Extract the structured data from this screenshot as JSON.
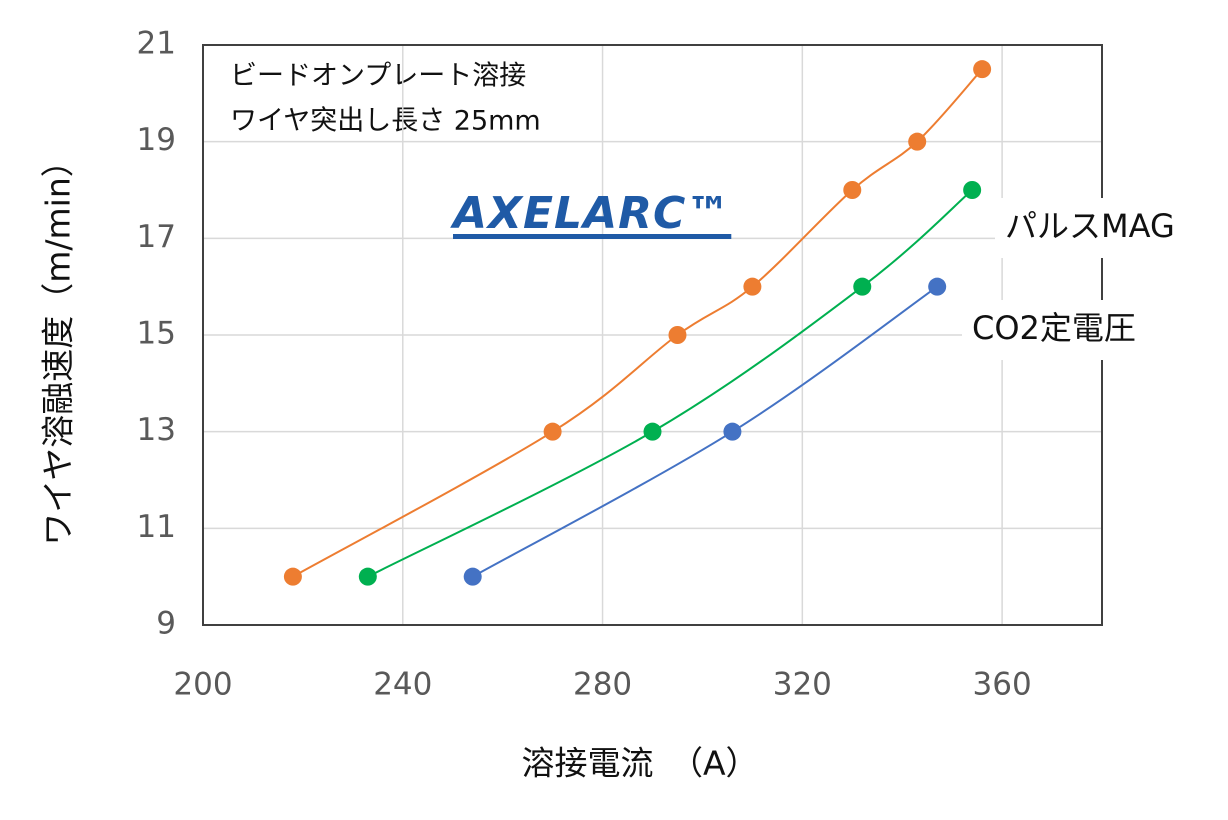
{
  "chart_data": {
    "type": "scatter_smooth",
    "annotations": [
      "ビードオンプレート溶接",
      "ワイヤ突出し長さ 25mm"
    ],
    "x_label": "溶接電流　（A）",
    "y_label": "ワイヤ溶融速度（m/min）",
    "xlim": [
      200,
      380
    ],
    "xticks": [
      200,
      240,
      280,
      320,
      360
    ],
    "ylim": [
      9,
      21
    ],
    "yticks": [
      9,
      11,
      13,
      15,
      17,
      19,
      21
    ],
    "grid": true,
    "series": [
      {
        "name": "AXELARC™",
        "color": "#ed7d31",
        "x": [
          218,
          270,
          295,
          310,
          330,
          343,
          356
        ],
        "values": [
          10,
          13,
          15,
          16,
          18,
          19,
          20.5
        ]
      },
      {
        "name": "パルスMAG",
        "color": "#00b050",
        "x": [
          233,
          290,
          332,
          354
        ],
        "values": [
          10,
          13,
          16,
          18
        ]
      },
      {
        "name": "CO2定電圧",
        "color": "#4472c4",
        "x": [
          254,
          306,
          347
        ],
        "values": [
          10,
          13,
          16
        ]
      }
    ]
  }
}
